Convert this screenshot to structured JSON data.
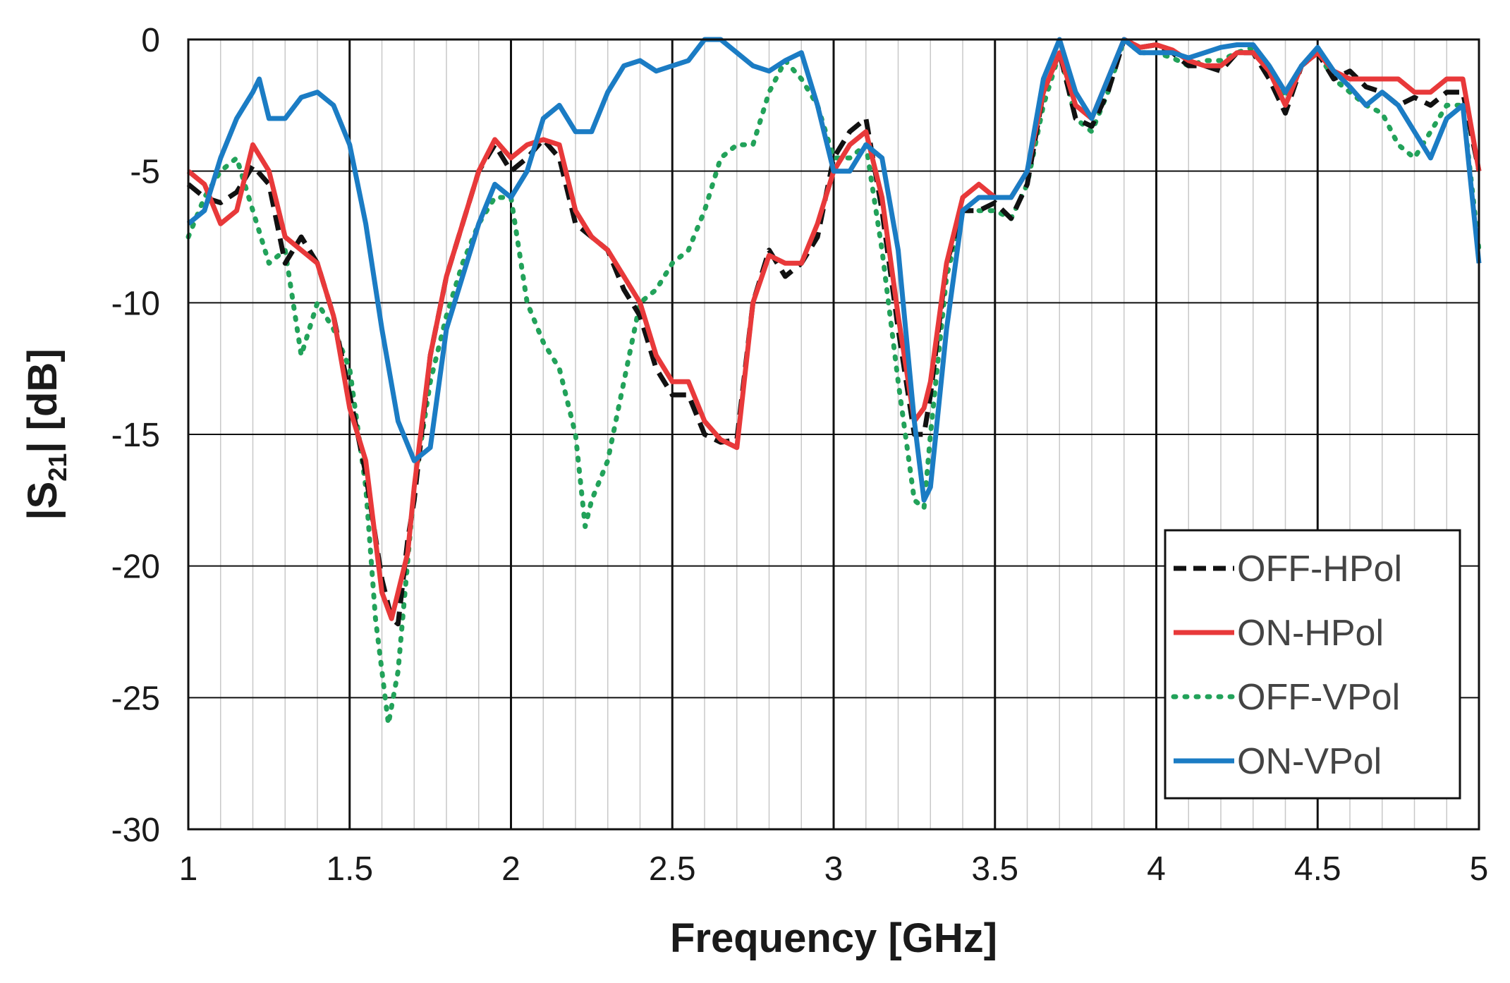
{
  "chart_data": {
    "type": "line",
    "title": "",
    "xlabel": "Frequency [GHz]",
    "ylabel_parts": [
      "|S",
      "21",
      "| [dB]"
    ],
    "xlim": [
      1,
      5
    ],
    "ylim": [
      -30,
      0
    ],
    "x_major_ticks": [
      1,
      1.5,
      2,
      2.5,
      3,
      3.5,
      4,
      4.5,
      5
    ],
    "x_tick_labels": [
      "1",
      "1.5",
      "2",
      "2.5",
      "3",
      "3.5",
      "4",
      "4.5",
      "5"
    ],
    "x_minor_step": 0.1,
    "y_major_ticks": [
      0,
      -5,
      -10,
      -15,
      -20,
      -25,
      -30
    ],
    "y_tick_labels": [
      "0",
      "-5",
      "-10",
      "-15",
      "-20",
      "-25",
      "-30"
    ],
    "grid": true,
    "legend_position": "bottom-right",
    "series": [
      {
        "name": "OFF-HPol",
        "color": "#111111",
        "style": "dashed",
        "x": [
          1.0,
          1.05,
          1.1,
          1.15,
          1.2,
          1.25,
          1.3,
          1.35,
          1.4,
          1.45,
          1.5,
          1.55,
          1.6,
          1.63,
          1.65,
          1.68,
          1.7,
          1.75,
          1.8,
          1.85,
          1.9,
          1.95,
          2.0,
          2.05,
          2.1,
          2.15,
          2.2,
          2.25,
          2.3,
          2.35,
          2.4,
          2.45,
          2.5,
          2.55,
          2.6,
          2.65,
          2.7,
          2.75,
          2.8,
          2.85,
          2.9,
          2.95,
          3.0,
          3.05,
          3.1,
          3.15,
          3.2,
          3.25,
          3.28,
          3.3,
          3.35,
          3.4,
          3.45,
          3.5,
          3.55,
          3.6,
          3.65,
          3.7,
          3.75,
          3.8,
          3.85,
          3.9,
          3.95,
          4.0,
          4.05,
          4.1,
          4.15,
          4.2,
          4.25,
          4.3,
          4.35,
          4.4,
          4.45,
          4.5,
          4.55,
          4.6,
          4.65,
          4.7,
          4.75,
          4.8,
          4.85,
          4.9,
          4.95,
          5.0
        ],
        "y": [
          -5.5,
          -6.0,
          -6.2,
          -5.8,
          -4.8,
          -5.5,
          -8.5,
          -7.5,
          -8.5,
          -10.5,
          -13.5,
          -16.5,
          -20.5,
          -22.0,
          -22.2,
          -19.0,
          -17.5,
          -12.0,
          -9.0,
          -7.0,
          -5.0,
          -4.0,
          -5.0,
          -4.5,
          -3.8,
          -4.5,
          -7.0,
          -7.5,
          -8.0,
          -9.5,
          -10.5,
          -12.5,
          -13.5,
          -13.5,
          -15.0,
          -15.3,
          -15.2,
          -10.0,
          -8.0,
          -9.0,
          -8.5,
          -7.5,
          -4.5,
          -3.5,
          -3.0,
          -6.5,
          -11.0,
          -15.0,
          -15.0,
          -13.5,
          -8.5,
          -6.5,
          -6.5,
          -6.2,
          -6.8,
          -5.5,
          -2.0,
          -0.5,
          -3.0,
          -3.3,
          -2.0,
          0.0,
          -0.3,
          -0.2,
          -0.5,
          -1.0,
          -1.0,
          -1.2,
          -0.5,
          -0.5,
          -1.5,
          -2.8,
          -1.0,
          -0.5,
          -1.5,
          -1.2,
          -1.8,
          -2.0,
          -2.5,
          -2.2,
          -2.5,
          -2.0,
          -2.0,
          -5.0
        ]
      },
      {
        "name": "ON-HPol",
        "color": "#e8393a",
        "style": "solid",
        "x": [
          1.0,
          1.05,
          1.1,
          1.15,
          1.2,
          1.25,
          1.3,
          1.35,
          1.4,
          1.45,
          1.5,
          1.55,
          1.6,
          1.63,
          1.65,
          1.68,
          1.7,
          1.75,
          1.8,
          1.85,
          1.9,
          1.95,
          2.0,
          2.05,
          2.1,
          2.15,
          2.2,
          2.25,
          2.3,
          2.35,
          2.4,
          2.45,
          2.5,
          2.55,
          2.6,
          2.65,
          2.7,
          2.75,
          2.8,
          2.85,
          2.9,
          2.95,
          3.0,
          3.05,
          3.1,
          3.15,
          3.2,
          3.25,
          3.28,
          3.3,
          3.35,
          3.4,
          3.45,
          3.5,
          3.55,
          3.6,
          3.65,
          3.7,
          3.75,
          3.8,
          3.85,
          3.9,
          3.95,
          4.0,
          4.05,
          4.1,
          4.15,
          4.2,
          4.25,
          4.3,
          4.35,
          4.4,
          4.45,
          4.5,
          4.55,
          4.6,
          4.65,
          4.7,
          4.75,
          4.8,
          4.85,
          4.9,
          4.95,
          5.0
        ],
        "y": [
          -5.0,
          -5.5,
          -7.0,
          -6.5,
          -4.0,
          -5.0,
          -7.5,
          -8.0,
          -8.5,
          -10.5,
          -14.0,
          -16.0,
          -21.0,
          -22.0,
          -21.0,
          -19.5,
          -17.0,
          -12.0,
          -9.0,
          -7.0,
          -5.0,
          -3.8,
          -4.5,
          -4.0,
          -3.8,
          -4.0,
          -6.5,
          -7.5,
          -8.0,
          -9.0,
          -10.0,
          -12.0,
          -13.0,
          -13.0,
          -14.5,
          -15.2,
          -15.5,
          -10.0,
          -8.2,
          -8.5,
          -8.5,
          -7.0,
          -5.0,
          -4.0,
          -3.5,
          -6.0,
          -10.5,
          -14.5,
          -14.0,
          -13.0,
          -8.5,
          -6.0,
          -5.5,
          -6.0,
          -6.0,
          -5.0,
          -2.0,
          -0.5,
          -2.5,
          -3.0,
          -1.5,
          0.0,
          -0.3,
          -0.2,
          -0.4,
          -0.8,
          -1.0,
          -1.0,
          -0.5,
          -0.5,
          -1.2,
          -2.5,
          -1.0,
          -0.5,
          -1.2,
          -1.5,
          -1.5,
          -1.5,
          -1.5,
          -2.0,
          -2.0,
          -1.5,
          -1.5,
          -5.0
        ]
      },
      {
        "name": "OFF-VPol",
        "color": "#22a25a",
        "style": "dotted",
        "x": [
          1.0,
          1.05,
          1.1,
          1.15,
          1.2,
          1.25,
          1.3,
          1.35,
          1.4,
          1.45,
          1.5,
          1.55,
          1.58,
          1.62,
          1.65,
          1.7,
          1.75,
          1.8,
          1.85,
          1.9,
          1.95,
          2.0,
          2.05,
          2.1,
          2.15,
          2.2,
          2.23,
          2.25,
          2.3,
          2.35,
          2.4,
          2.45,
          2.5,
          2.55,
          2.6,
          2.65,
          2.7,
          2.75,
          2.8,
          2.85,
          2.9,
          2.95,
          3.0,
          3.05,
          3.1,
          3.15,
          3.2,
          3.25,
          3.28,
          3.3,
          3.35,
          3.4,
          3.45,
          3.5,
          3.55,
          3.6,
          3.65,
          3.7,
          3.75,
          3.8,
          3.85,
          3.9,
          3.95,
          4.0,
          4.05,
          4.1,
          4.15,
          4.2,
          4.25,
          4.3,
          4.35,
          4.4,
          4.45,
          4.5,
          4.55,
          4.6,
          4.65,
          4.7,
          4.75,
          4.8,
          4.85,
          4.9,
          4.95,
          5.0
        ],
        "y": [
          -7.5,
          -6.0,
          -5.0,
          -4.5,
          -6.5,
          -8.5,
          -8.0,
          -12.0,
          -10.0,
          -11.0,
          -12.5,
          -17.0,
          -22.0,
          -26.0,
          -24.0,
          -17.0,
          -13.0,
          -10.5,
          -8.5,
          -7.0,
          -6.0,
          -6.0,
          -10.0,
          -11.5,
          -12.5,
          -15.0,
          -18.5,
          -17.5,
          -16.0,
          -13.0,
          -10.0,
          -9.5,
          -8.5,
          -8.0,
          -6.5,
          -4.5,
          -4.0,
          -4.0,
          -2.0,
          -0.8,
          -1.5,
          -2.5,
          -4.5,
          -4.5,
          -4.0,
          -8.0,
          -13.0,
          -17.5,
          -17.8,
          -15.0,
          -9.0,
          -6.5,
          -6.5,
          -6.5,
          -6.8,
          -5.5,
          -2.5,
          -0.5,
          -3.0,
          -3.5,
          -2.0,
          0.0,
          -0.5,
          -0.5,
          -0.7,
          -1.0,
          -0.8,
          -0.8,
          -0.5,
          -0.3,
          -1.0,
          -2.2,
          -1.0,
          -0.5,
          -1.5,
          -2.0,
          -2.5,
          -2.8,
          -4.0,
          -4.5,
          -3.5,
          -2.5,
          -2.5,
          -8.0
        ]
      },
      {
        "name": "ON-VPol",
        "color": "#1b7cc4",
        "style": "solid",
        "x": [
          1.0,
          1.05,
          1.1,
          1.15,
          1.2,
          1.22,
          1.25,
          1.3,
          1.35,
          1.4,
          1.45,
          1.5,
          1.55,
          1.6,
          1.65,
          1.7,
          1.75,
          1.8,
          1.85,
          1.9,
          1.95,
          2.0,
          2.05,
          2.1,
          2.15,
          2.2,
          2.25,
          2.3,
          2.35,
          2.4,
          2.45,
          2.5,
          2.55,
          2.6,
          2.65,
          2.7,
          2.75,
          2.8,
          2.85,
          2.9,
          2.95,
          3.0,
          3.05,
          3.1,
          3.15,
          3.2,
          3.25,
          3.28,
          3.3,
          3.35,
          3.4,
          3.45,
          3.5,
          3.55,
          3.6,
          3.65,
          3.7,
          3.75,
          3.8,
          3.85,
          3.9,
          3.95,
          4.0,
          4.05,
          4.1,
          4.15,
          4.2,
          4.25,
          4.3,
          4.35,
          4.4,
          4.45,
          4.5,
          4.55,
          4.6,
          4.65,
          4.7,
          4.75,
          4.8,
          4.85,
          4.9,
          4.95,
          5.0
        ],
        "y": [
          -7.0,
          -6.5,
          -4.5,
          -3.0,
          -2.0,
          -1.5,
          -3.0,
          -3.0,
          -2.2,
          -2.0,
          -2.5,
          -4.0,
          -7.0,
          -11.0,
          -14.5,
          -16.0,
          -15.5,
          -11.0,
          -9.0,
          -7.0,
          -5.5,
          -6.0,
          -5.0,
          -3.0,
          -2.5,
          -3.5,
          -3.5,
          -2.0,
          -1.0,
          -0.8,
          -1.2,
          -1.0,
          -0.8,
          0.0,
          0.0,
          -0.5,
          -1.0,
          -1.2,
          -0.8,
          -0.5,
          -2.5,
          -5.0,
          -5.0,
          -4.0,
          -4.5,
          -8.0,
          -14.5,
          -17.5,
          -17.0,
          -11.0,
          -6.5,
          -6.0,
          -6.0,
          -6.0,
          -5.0,
          -1.5,
          0.0,
          -2.0,
          -3.0,
          -1.5,
          0.0,
          -0.5,
          -0.5,
          -0.5,
          -0.7,
          -0.5,
          -0.3,
          -0.2,
          -0.2,
          -1.0,
          -2.0,
          -1.0,
          -0.3,
          -1.2,
          -1.8,
          -2.5,
          -2.0,
          -2.5,
          -3.5,
          -4.5,
          -3.0,
          -2.5,
          -8.5
        ]
      }
    ]
  }
}
